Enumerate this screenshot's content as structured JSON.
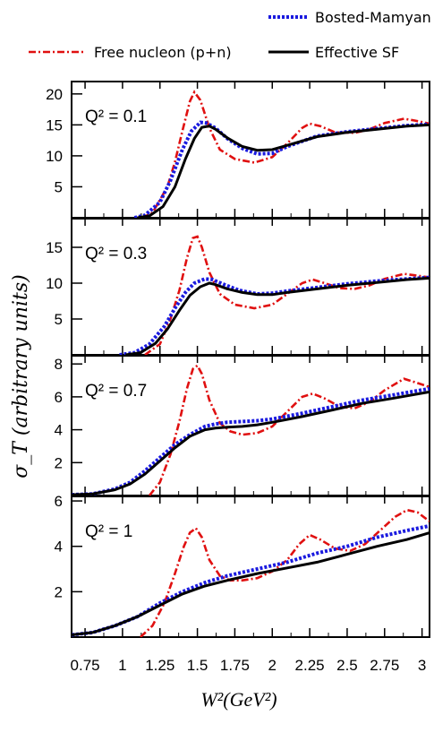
{
  "chart_data": {
    "type": "line",
    "xlabel": "W²(GeV²)",
    "ylabel": "σ_T (arbitrary units)",
    "xlim": [
      0.66,
      3.05
    ],
    "x_ticks": [
      "0.75",
      "1",
      "1.25",
      "1.5",
      "1.75",
      "2",
      "2.25",
      "2.5",
      "2.75",
      "3"
    ],
    "legend": [
      {
        "name": "Bosted-Mamyan",
        "color": "#1a1adf",
        "style": "dotted"
      },
      {
        "name": "Free nucleon (p+n)",
        "color": "#e01010",
        "style": "dash-dot"
      },
      {
        "name": "Effective SF",
        "color": "#000000",
        "style": "solid"
      }
    ],
    "panels": [
      {
        "label": "Q² = 0.1",
        "ylim": [
          0,
          22
        ],
        "y_ticks": [
          5,
          10,
          15,
          20
        ],
        "series": [
          {
            "name": "Free nucleon (p+n)",
            "x": [
              1.13,
              1.2,
              1.3,
              1.35,
              1.4,
              1.45,
              1.48,
              1.52,
              1.58,
              1.65,
              1.75,
              1.88,
              2.0,
              2.1,
              2.2,
              2.25,
              2.32,
              2.42,
              2.55,
              2.65,
              2.75,
              2.88,
              2.95,
              3.05
            ],
            "y": [
              0,
              0.8,
              5,
              9,
              14,
              18.8,
              20.3,
              19,
              14.5,
              11,
              9.5,
              8.9,
              9.8,
              12,
              14.5,
              15.2,
              14.8,
              13.8,
              13.7,
              14.3,
              15.3,
              16,
              15.7,
              15.2
            ]
          },
          {
            "name": "Bosted-Mamyan",
            "x": [
              1.08,
              1.15,
              1.25,
              1.32,
              1.4,
              1.46,
              1.52,
              1.56,
              1.62,
              1.7,
              1.8,
              1.9,
              2.0,
              2.1,
              2.3,
              2.5,
              2.7,
              2.9,
              3.05
            ],
            "y": [
              0,
              0.4,
              2.5,
              6,
              11,
              14,
              15.4,
              15.3,
              14.5,
              12.8,
              11.2,
              10.3,
              10.4,
              11.5,
              13.2,
              13.9,
              14.4,
              14.9,
              15.1
            ]
          },
          {
            "name": "Effective SF",
            "x": [
              1.1,
              1.18,
              1.27,
              1.35,
              1.42,
              1.48,
              1.53,
              1.58,
              1.62,
              1.7,
              1.8,
              1.9,
              2.0,
              2.1,
              2.3,
              2.5,
              2.7,
              2.9,
              3.05
            ],
            "y": [
              0,
              0.3,
              1.8,
              5,
              9.5,
              12.8,
              14.6,
              14.8,
              14.3,
              12.9,
              11.5,
              10.9,
              11.0,
              11.7,
              13.1,
              13.8,
              14.3,
              14.8,
              15.0
            ]
          }
        ]
      },
      {
        "label": "Q² = 0.3",
        "ylim": [
          0,
          19
        ],
        "y_ticks": [
          5,
          10,
          15
        ],
        "series": [
          {
            "name": "Free nucleon (p+n)",
            "x": [
              1.15,
              1.25,
              1.32,
              1.38,
              1.43,
              1.47,
              1.5,
              1.53,
              1.58,
              1.65,
              1.75,
              1.88,
              2.0,
              2.1,
              2.2,
              2.27,
              2.35,
              2.45,
              2.55,
              2.65,
              2.75,
              2.88,
              2.95,
              3.05
            ],
            "y": [
              0,
              1.5,
              5,
              9,
              13.5,
              16.3,
              16.5,
              15,
              11.5,
              8.5,
              7,
              6.5,
              7,
              8.5,
              10,
              10.5,
              10,
              9.3,
              9.2,
              9.7,
              10.6,
              11.3,
              11.1,
              10.8
            ]
          },
          {
            "name": "Bosted-Mamyan",
            "x": [
              0.98,
              1.08,
              1.18,
              1.28,
              1.35,
              1.42,
              1.48,
              1.55,
              1.6,
              1.68,
              1.78,
              1.9,
              2.0,
              2.1,
              2.3,
              2.5,
              2.7,
              2.9,
              3.05
            ],
            "y": [
              0,
              0.3,
              1.5,
              4,
              6.5,
              8.7,
              10,
              10.6,
              10.5,
              9.8,
              9.0,
              8.5,
              8.6,
              8.9,
              9.4,
              9.9,
              10.3,
              10.6,
              10.8
            ]
          },
          {
            "name": "Effective SF",
            "x": [
              1.02,
              1.12,
              1.22,
              1.3,
              1.38,
              1.45,
              1.52,
              1.58,
              1.62,
              1.7,
              1.8,
              1.9,
              2.0,
              2.1,
              2.3,
              2.5,
              2.7,
              2.9,
              3.05
            ],
            "y": [
              0,
              0.3,
              1.6,
              3.6,
              6.2,
              8.3,
              9.5,
              10.0,
              9.8,
              9.2,
              8.7,
              8.4,
              8.4,
              8.7,
              9.2,
              9.7,
              10.1,
              10.5,
              10.7
            ]
          }
        ]
      },
      {
        "label": "Q² = 0.7",
        "ylim": [
          0,
          8.5
        ],
        "y_ticks": [
          2,
          4,
          6,
          8
        ],
        "series": [
          {
            "name": "Free nucleon (p+n)",
            "x": [
              1.18,
              1.25,
              1.32,
              1.38,
              1.43,
              1.47,
              1.5,
              1.53,
              1.58,
              1.65,
              1.72,
              1.8,
              1.9,
              2.0,
              2.1,
              2.2,
              2.27,
              2.35,
              2.45,
              2.55,
              2.65,
              2.75,
              2.88,
              2.95,
              3.05
            ],
            "y": [
              0,
              0.8,
              2.5,
              4.5,
              6.5,
              7.7,
              7.9,
              7.4,
              5.8,
              4.4,
              3.9,
              3.7,
              3.8,
              4.2,
              5.1,
              6.0,
              6.2,
              5.9,
              5.4,
              5.3,
              5.7,
              6.4,
              7.1,
              6.9,
              6.6
            ]
          },
          {
            "name": "Bosted-Mamyan",
            "x": [
              0.66,
              0.8,
              0.95,
              1.05,
              1.15,
              1.25,
              1.35,
              1.45,
              1.55,
              1.62,
              1.7,
              1.8,
              1.9,
              2.0,
              2.2,
              2.4,
              2.6,
              2.8,
              3.05
            ],
            "y": [
              0.05,
              0.1,
              0.4,
              0.8,
              1.5,
              2.3,
              3.1,
              3.7,
              4.2,
              4.35,
              4.45,
              4.5,
              4.55,
              4.65,
              5.0,
              5.4,
              5.8,
              6.1,
              6.5
            ]
          },
          {
            "name": "Effective SF",
            "x": [
              0.66,
              0.8,
              0.95,
              1.05,
              1.15,
              1.25,
              1.35,
              1.45,
              1.55,
              1.62,
              1.7,
              1.8,
              1.9,
              2.0,
              2.2,
              2.4,
              2.6,
              2.8,
              3.05
            ],
            "y": [
              0.05,
              0.1,
              0.35,
              0.7,
              1.3,
              2.1,
              2.9,
              3.6,
              4.0,
              4.1,
              4.15,
              4.2,
              4.3,
              4.45,
              4.8,
              5.2,
              5.6,
              5.9,
              6.3
            ]
          }
        ]
      },
      {
        "label": "Q² = 1",
        "ylim": [
          0,
          6.2
        ],
        "y_ticks": [
          2,
          4,
          6
        ],
        "series": [
          {
            "name": "Free nucleon (p+n)",
            "x": [
              1.12,
              1.2,
              1.28,
              1.35,
              1.41,
              1.45,
              1.49,
              1.53,
              1.58,
              1.65,
              1.72,
              1.8,
              1.9,
              2.0,
              2.1,
              2.18,
              2.25,
              2.32,
              2.42,
              2.52,
              2.62,
              2.72,
              2.82,
              2.9,
              2.97,
              3.05
            ],
            "y": [
              0,
              0.5,
              1.5,
              2.8,
              4.0,
              4.6,
              4.8,
              4.4,
              3.4,
              2.7,
              2.5,
              2.5,
              2.6,
              2.9,
              3.4,
              4.1,
              4.5,
              4.3,
              3.9,
              3.8,
              4.1,
              4.7,
              5.3,
              5.6,
              5.5,
              5.1
            ]
          },
          {
            "name": "Bosted-Mamyan",
            "x": [
              0.66,
              0.8,
              0.95,
              1.1,
              1.25,
              1.4,
              1.55,
              1.7,
              1.9,
              2.1,
              2.3,
              2.5,
              2.7,
              2.9,
              3.05
            ],
            "y": [
              0.1,
              0.2,
              0.5,
              0.9,
              1.5,
              2.0,
              2.4,
              2.7,
              3.0,
              3.3,
              3.7,
              4.0,
              4.4,
              4.7,
              4.9
            ]
          },
          {
            "name": "Effective SF",
            "x": [
              0.66,
              0.8,
              0.95,
              1.1,
              1.25,
              1.4,
              1.55,
              1.7,
              1.9,
              2.1,
              2.3,
              2.5,
              2.7,
              2.9,
              3.05
            ],
            "y": [
              0.1,
              0.2,
              0.5,
              0.9,
              1.4,
              1.9,
              2.25,
              2.5,
              2.8,
              3.05,
              3.3,
              3.65,
              4.0,
              4.3,
              4.6
            ]
          }
        ]
      }
    ]
  }
}
